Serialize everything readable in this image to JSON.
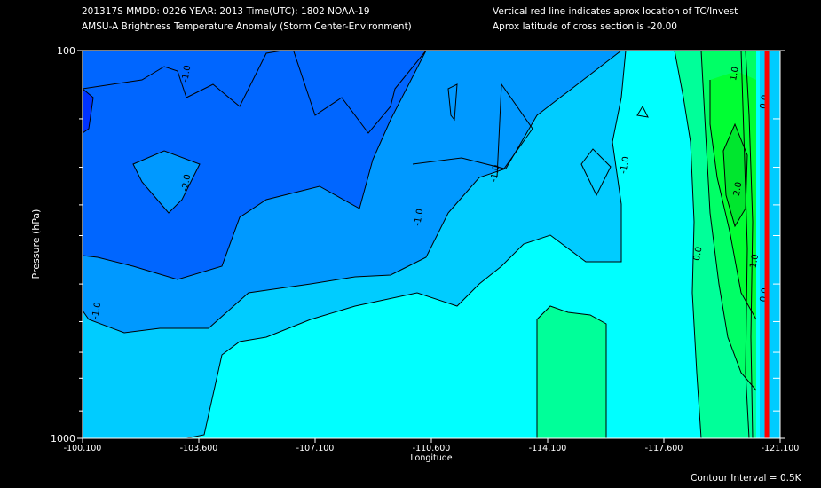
{
  "header": {
    "line1": "201317S  MMDD: 0226 YEAR: 2013 Time(UTC): 1802 NOAA-19",
    "line2": "AMSU-A Brightness Temperature Anomaly (Storm Center-Environment)",
    "line3": "Vertical red line indicates aprox location of TC/Invest",
    "line4": "Aprox latitude of cross section is -20.00"
  },
  "footer": {
    "contour_interval": "Contour Interval = 0.5K"
  },
  "colors": {
    "background": "#000000",
    "storm_line": "#ff0000",
    "levels": [
      "#0033ff",
      "#0066ff",
      "#0099ff",
      "#00ccff",
      "#00ffff",
      "#00ff99",
      "#00ff66",
      "#00ff33"
    ]
  },
  "chart_data": {
    "type": "heatmap",
    "title": "AMSU-A Brightness Temperature Anomaly (Storm Center-Environment)",
    "xlabel": "Longitude",
    "ylabel": "Pressure (hPa)",
    "xlim": [
      -100.1,
      -121.1
    ],
    "ylim": [
      1000,
      100
    ],
    "y_scale": "log",
    "x_tick_labels": [
      "-100.100",
      "-103.600",
      "-107.100",
      "-110.600",
      "-114.100",
      "-117.600",
      "-121.100"
    ],
    "x_tick_values": [
      -100.1,
      -103.6,
      -107.1,
      -110.6,
      -114.1,
      -117.6,
      -121.1
    ],
    "y_tick_labels": [
      "100",
      "1000"
    ],
    "y_minor_ticks": [
      150,
      200,
      250,
      300,
      400,
      500,
      600,
      700,
      850
    ],
    "contour_interval": 0.5,
    "contour_labels": [
      {
        "text": "-1.0",
        "lon": -103.3,
        "p": 115
      },
      {
        "text": "-2.0",
        "lon": -103.3,
        "p": 220
      },
      {
        "text": "-1.0",
        "lon": -110.3,
        "p": 270
      },
      {
        "text": "-1.0",
        "lon": -112.6,
        "p": 208
      },
      {
        "text": "-1.0",
        "lon": -116.5,
        "p": 198
      },
      {
        "text": "-1.0",
        "lon": -100.6,
        "p": 470
      },
      {
        "text": "0.0",
        "lon": -118.7,
        "p": 335
      },
      {
        "text": "1.0",
        "lon": -119.8,
        "p": 115
      },
      {
        "text": "2.0",
        "lon": -119.9,
        "p": 228
      },
      {
        "text": "1.0",
        "lon": -120.4,
        "p": 350
      },
      {
        "text": "0.0",
        "lon": -120.7,
        "p": 136
      },
      {
        "text": "0.0",
        "lon": -120.7,
        "p": 428
      }
    ],
    "storm_center_lon": -120.7,
    "grid": false
  }
}
